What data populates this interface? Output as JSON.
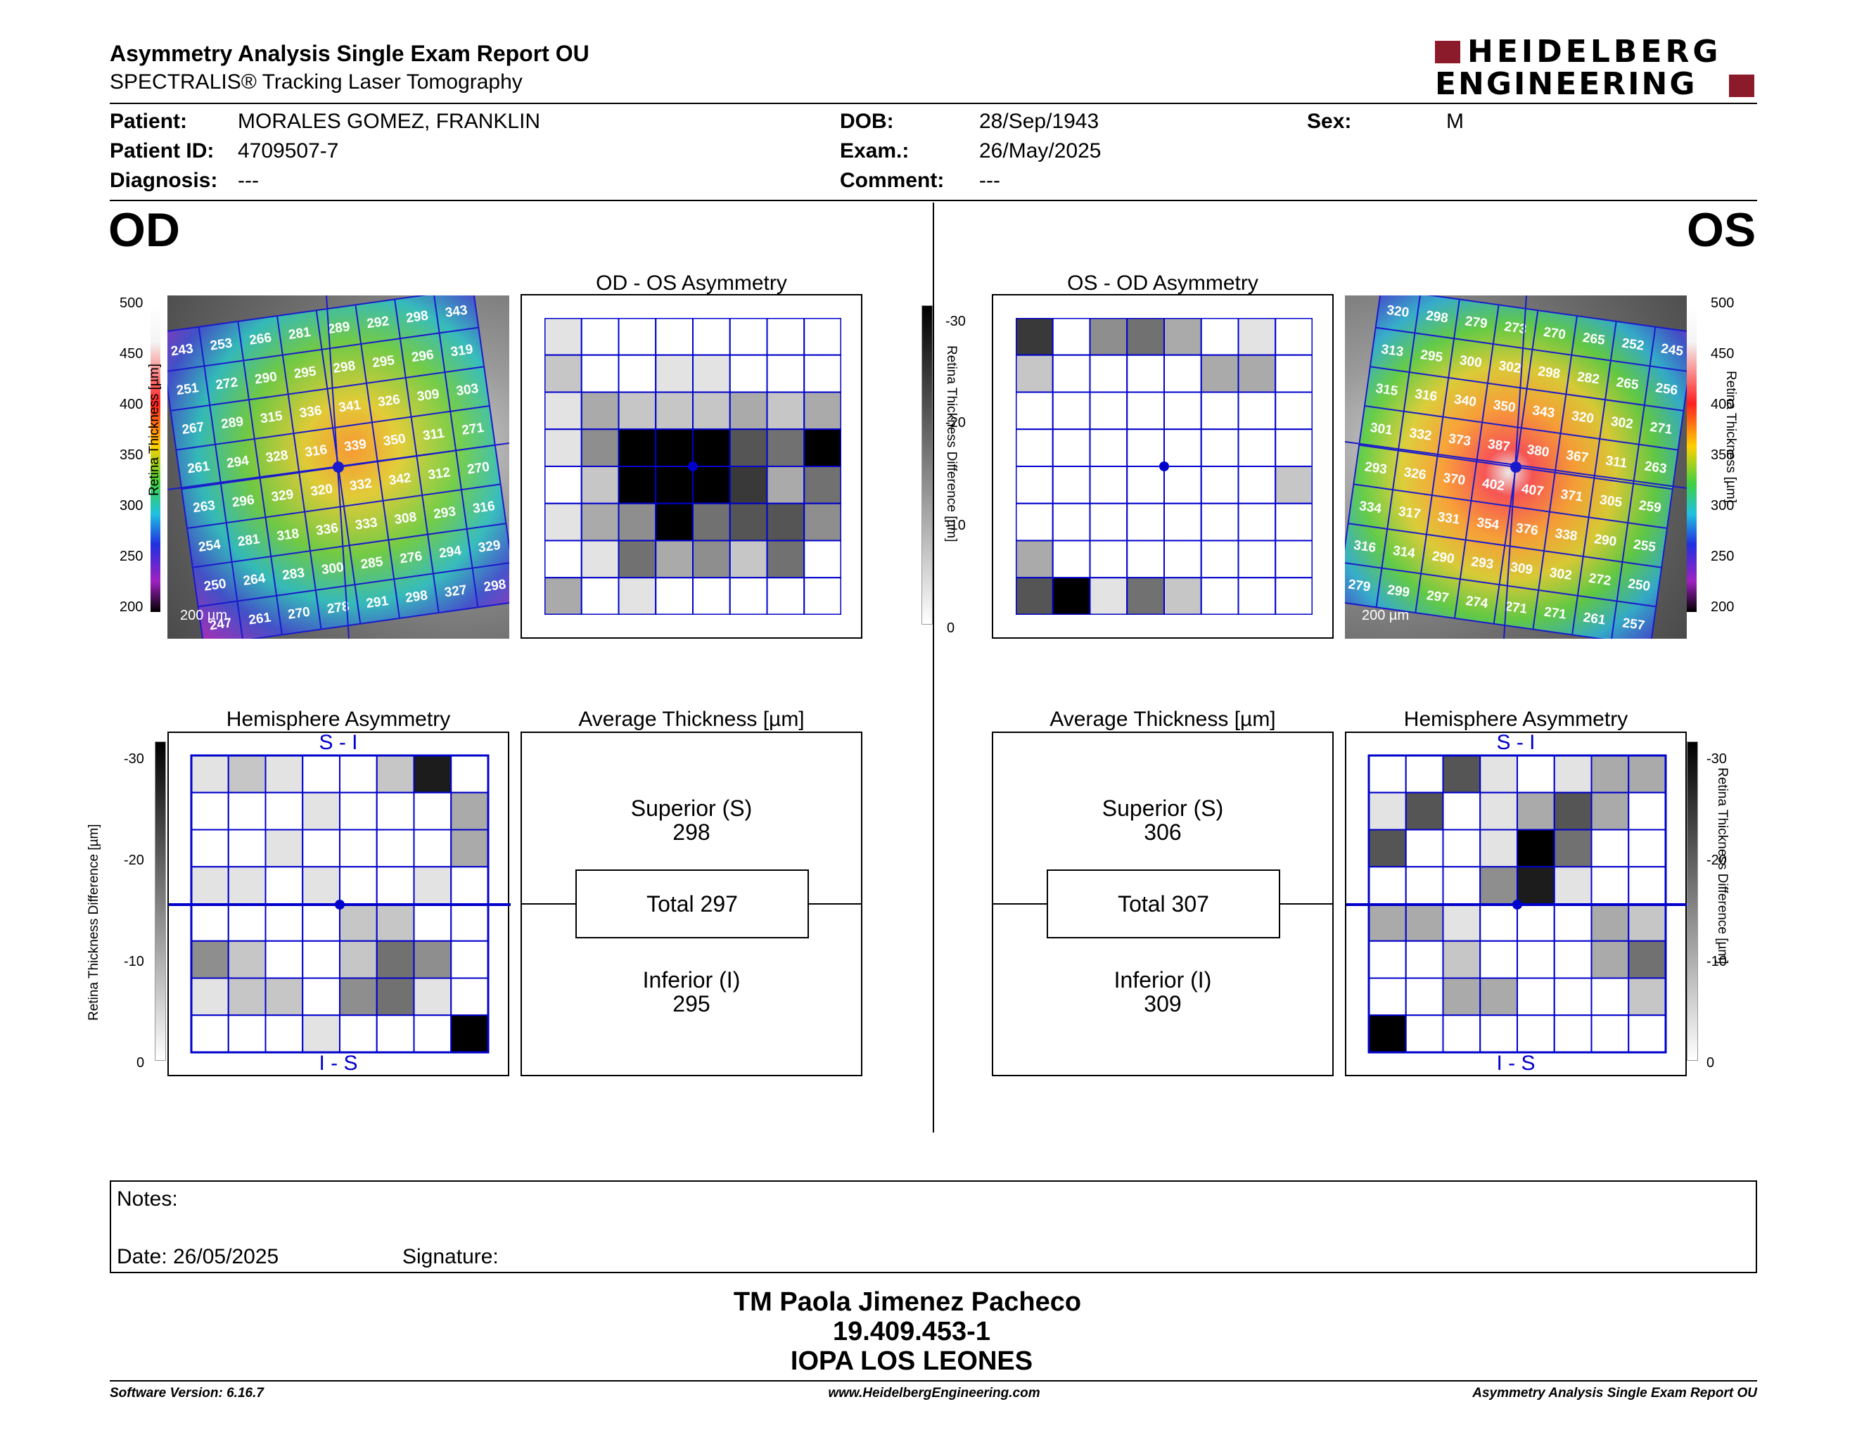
{
  "header": {
    "title": "Asymmetry Analysis Single Exam Report OU",
    "subtitle": "SPECTRALIS® Tracking Laser Tomography",
    "logo_line1": "HEIDELBERG",
    "logo_line2": "ENGINEERING"
  },
  "patient": {
    "patient_label": "Patient:",
    "patient_value": "MORALES GOMEZ, FRANKLIN",
    "id_label": "Patient ID:",
    "id_value": "4709507-7",
    "diag_label": "Diagnosis:",
    "diag_value": "---",
    "dob_label": "DOB:",
    "dob_value": "28/Sep/1943",
    "exam_label": "Exam.:",
    "exam_value": "26/May/2025",
    "comment_label": "Comment:",
    "comment_value": "---",
    "sex_label": "Sex:",
    "sex_value": "M"
  },
  "od": {
    "label": "OD",
    "asym_title": "OD - OS Asymmetry",
    "hemi_title": "Hemisphere Asymmetry",
    "avg_title": "Average Thickness [µm]",
    "superior_label": "Superior (S)",
    "superior_value": "298",
    "total_label": "Total 297",
    "inferior_label": "Inferior (I)",
    "inferior_value": "295",
    "si_label": "S - I",
    "is_label": "I - S",
    "scale_label": "200 µm",
    "thickness": [
      [
        243,
        253,
        266,
        281,
        289,
        292,
        298,
        343
      ],
      [
        251,
        272,
        290,
        295,
        298,
        295,
        296,
        319
      ],
      [
        267,
        289,
        315,
        336,
        341,
        326,
        309,
        303
      ],
      [
        261,
        294,
        328,
        316,
        339,
        350,
        311,
        271
      ],
      [
        263,
        296,
        329,
        320,
        332,
        342,
        312,
        270
      ],
      [
        254,
        281,
        318,
        336,
        333,
        308,
        293,
        316
      ],
      [
        250,
        264,
        283,
        300,
        285,
        276,
        294,
        329
      ],
      [
        247,
        261,
        270,
        278,
        291,
        298,
        327,
        298
      ]
    ],
    "asym_grid": [
      [
        1,
        0,
        0,
        0,
        0,
        0,
        0,
        0
      ],
      [
        2,
        0,
        0,
        1,
        1,
        0,
        0,
        0
      ],
      [
        1,
        3,
        2,
        2,
        2,
        3,
        2,
        3
      ],
      [
        1,
        4,
        9,
        9,
        9,
        6,
        5,
        9
      ],
      [
        0,
        2,
        9,
        9,
        9,
        7,
        3,
        5
      ],
      [
        1,
        3,
        4,
        9,
        5,
        6,
        6,
        4
      ],
      [
        0,
        1,
        5,
        3,
        4,
        2,
        5,
        0
      ],
      [
        3,
        0,
        1,
        0,
        0,
        0,
        0,
        0
      ]
    ],
    "hemi_grid": [
      [
        1,
        2,
        1,
        0,
        0,
        2,
        8,
        0
      ],
      [
        0,
        0,
        0,
        1,
        0,
        0,
        0,
        3
      ],
      [
        0,
        0,
        1,
        0,
        0,
        0,
        0,
        3
      ],
      [
        1,
        1,
        0,
        1,
        0,
        0,
        1,
        0
      ],
      [
        0,
        0,
        0,
        0,
        2,
        2,
        0,
        0
      ],
      [
        4,
        2,
        0,
        0,
        2,
        5,
        4,
        0
      ],
      [
        1,
        2,
        2,
        0,
        4,
        5,
        1,
        0
      ],
      [
        0,
        0,
        0,
        1,
        0,
        0,
        0,
        9
      ]
    ]
  },
  "os": {
    "label": "OS",
    "asym_title": "OS - OD Asymmetry",
    "hemi_title": "Hemisphere Asymmetry",
    "avg_title": "Average Thickness [µm]",
    "superior_label": "Superior (S)",
    "superior_value": "306",
    "total_label": "Total 307",
    "inferior_label": "Inferior (I)",
    "inferior_value": "309",
    "si_label": "S - I",
    "is_label": "I - S",
    "scale_label": "200 µm",
    "thickness": [
      [
        320,
        298,
        279,
        273,
        270,
        265,
        252,
        245
      ],
      [
        313,
        295,
        300,
        302,
        298,
        282,
        265,
        256
      ],
      [
        315,
        316,
        340,
        350,
        343,
        320,
        302,
        271
      ],
      [
        301,
        332,
        373,
        387,
        380,
        367,
        311,
        263
      ],
      [
        293,
        326,
        370,
        402,
        407,
        371,
        305,
        259
      ],
      [
        334,
        317,
        331,
        354,
        376,
        338,
        290,
        255
      ],
      [
        316,
        314,
        290,
        293,
        309,
        302,
        272,
        250
      ],
      [
        279,
        299,
        297,
        274,
        271,
        271,
        261,
        257
      ]
    ],
    "asym_grid": [
      [
        7,
        0,
        4,
        5,
        3,
        0,
        1,
        0
      ],
      [
        2,
        0,
        0,
        0,
        0,
        3,
        3,
        0
      ],
      [
        0,
        0,
        0,
        0,
        0,
        0,
        0,
        0
      ],
      [
        0,
        0,
        0,
        0,
        0,
        0,
        0,
        0
      ],
      [
        0,
        0,
        0,
        0,
        0,
        0,
        0,
        2
      ],
      [
        0,
        0,
        0,
        0,
        0,
        0,
        0,
        0
      ],
      [
        3,
        0,
        0,
        0,
        0,
        0,
        0,
        0
      ],
      [
        6,
        9,
        1,
        5,
        2,
        0,
        0,
        0
      ]
    ],
    "hemi_grid": [
      [
        0,
        0,
        6,
        1,
        0,
        1,
        3,
        3
      ],
      [
        1,
        6,
        0,
        1,
        3,
        6,
        3,
        0
      ],
      [
        6,
        0,
        0,
        1,
        9,
        5,
        0,
        0
      ],
      [
        0,
        0,
        0,
        4,
        8,
        1,
        0,
        0
      ],
      [
        3,
        3,
        1,
        0,
        0,
        0,
        3,
        2
      ],
      [
        0,
        0,
        2,
        0,
        0,
        0,
        3,
        5
      ],
      [
        0,
        0,
        3,
        3,
        0,
        0,
        0,
        2
      ],
      [
        9,
        0,
        0,
        0,
        0,
        0,
        0,
        0
      ]
    ]
  },
  "colorbar": {
    "thickness_title": "Retina Thickness [µm]",
    "thickness_ticks": [
      "500",
      "450",
      "400",
      "350",
      "300",
      "250",
      "200"
    ],
    "diff_title": "Retina Thickness Difference [µm]",
    "diff_ticks": [
      "-30",
      "-20",
      "-10",
      "0"
    ]
  },
  "notes": {
    "notes_label": "Notes:",
    "date_label": "Date: 26/05/2025",
    "signature_label": "Signature:"
  },
  "signature": {
    "name": "TM Paola Jimenez Pacheco",
    "rut": "19.409.453-1",
    "place": "IOPA LOS LEONES"
  },
  "footer": {
    "software": "Software Version: 6.16.7",
    "website": "www.HeidelbergEngineering.com",
    "report": "Asymmetry Analysis Single Exam Report OU"
  },
  "colors": {
    "grid_blue": "#0000cc",
    "brand_red": "#8b1a2b"
  }
}
